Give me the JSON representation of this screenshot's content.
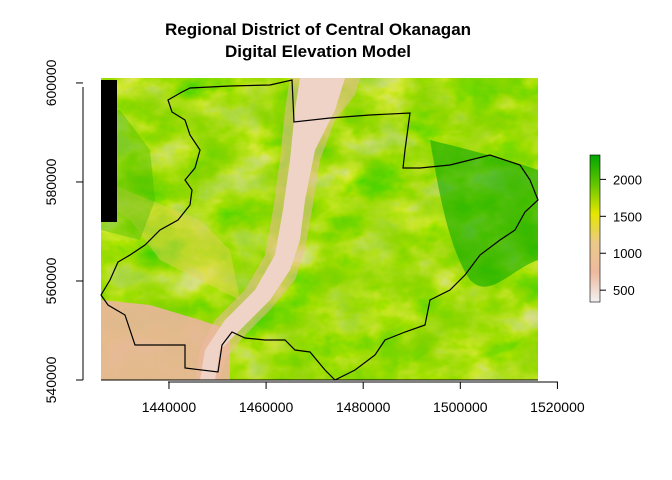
{
  "chart_data": {
    "type": "heatmap",
    "title": "Regional District of Central Okanagan",
    "subtitle": "Digital Elevation Model",
    "xlabel": "",
    "ylabel": "",
    "xlim": [
      1426000,
      1516000
    ],
    "ylim": [
      540000,
      601000
    ],
    "x_ticks": [
      1440000,
      1460000,
      1480000,
      1500000,
      1520000
    ],
    "x_tick_labels": [
      "1440000",
      "1460000",
      "1480000",
      "1500000",
      "1520000"
    ],
    "y_ticks": [
      540000,
      560000,
      580000,
      600000
    ],
    "y_tick_labels": [
      "540000",
      "560000",
      "580000",
      "600000"
    ],
    "legend": {
      "position": "right",
      "min": 340,
      "max": 2330,
      "ticks": [
        500,
        1000,
        1500,
        2000
      ],
      "tick_labels": [
        "500",
        "1000",
        "1500",
        "2000"
      ],
      "colors": [
        "#f2f2f2",
        "#eeb99f",
        "#eac98a",
        "#e6e600",
        "#63c600",
        "#00a600"
      ]
    },
    "series": [
      {
        "name": "",
        "color": "#000000"
      }
    ]
  }
}
